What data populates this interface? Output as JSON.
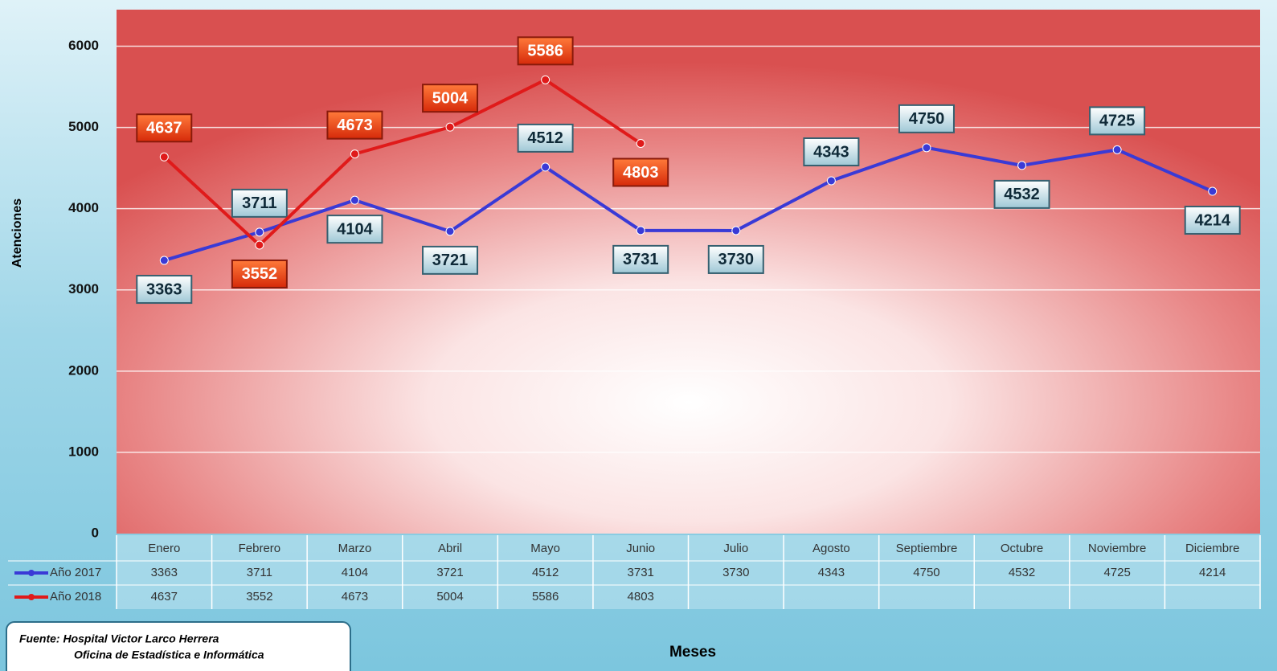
{
  "chart_data": {
    "type": "line",
    "y_label": "Atenciones",
    "x_label": "Meses",
    "source": [
      "Fuente: Hospital Victor Larco Herrera",
      "Oficina de Estadística e Informática"
    ],
    "categories": [
      "Enero",
      "Febrero",
      "Marzo",
      "Abril",
      "Mayo",
      "Junio",
      "Julio",
      "Agosto",
      "Septiembre",
      "Octubre",
      "Noviembre",
      "Diciembre"
    ],
    "series": [
      {
        "name": "Año 2017",
        "color": "#3a3ad6",
        "values": [
          3363,
          3711,
          4104,
          3721,
          4512,
          3731,
          3730,
          4343,
          4750,
          4532,
          4725,
          4214
        ]
      },
      {
        "name": "Año 2018",
        "color": "#e01a1a",
        "values": [
          4637,
          3552,
          4673,
          5004,
          5586,
          4803,
          null,
          null,
          null,
          null,
          null,
          null
        ]
      }
    ],
    "ylim": [
      0,
      6450
    ],
    "yticks": [
      0,
      1000,
      2000,
      3000,
      4000,
      5000,
      6000
    ],
    "grid": true,
    "data_table": true
  }
}
